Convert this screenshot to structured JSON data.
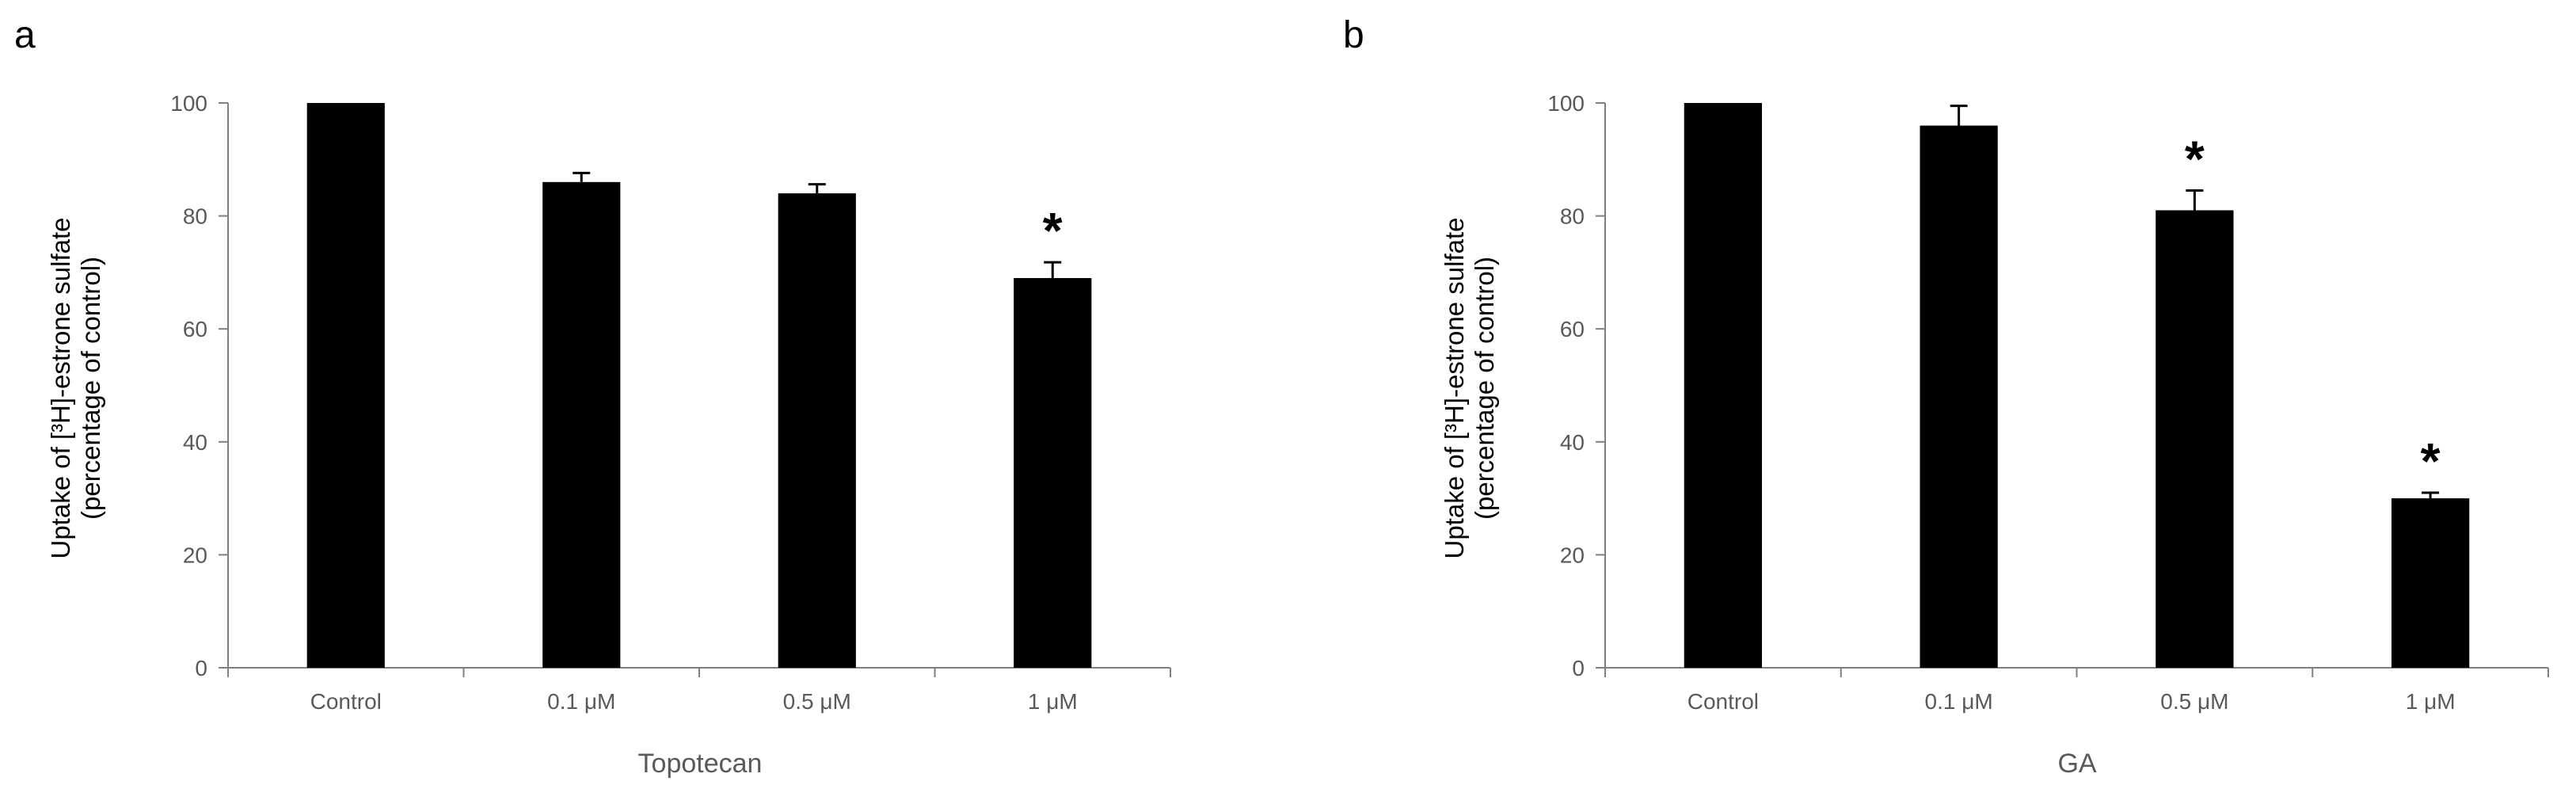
{
  "chart_data": [
    {
      "panel_label": "a",
      "type": "bar",
      "categories": [
        "Control",
        "0.1 μM",
        "0.5 μM",
        "1 μM"
      ],
      "values": [
        100,
        86,
        84,
        69
      ],
      "error": [
        0,
        1.6,
        1.6,
        2.8
      ],
      "significant": [
        "",
        "",
        "",
        "*"
      ],
      "xlabel": "Topotecan",
      "ylabel_line1": "Uptake of [³H]-estrone sulfate",
      "ylabel_line2": "(percentage of control)",
      "ylim": [
        0,
        100
      ],
      "yticks": [
        "0",
        "20",
        "40",
        "60",
        "80",
        "100"
      ],
      "grid": false,
      "bar_color": "#000000"
    },
    {
      "panel_label": "b",
      "type": "bar",
      "categories": [
        "Control",
        "0.1 μM",
        "0.5 μM",
        "1 μM"
      ],
      "values": [
        100,
        96,
        81,
        30
      ],
      "error": [
        0,
        3.5,
        3.5,
        1.0
      ],
      "significant": [
        "",
        "",
        "*",
        "*"
      ],
      "xlabel": "GA",
      "ylabel_line1": "Uptake of [³H]-estrone sulfate",
      "ylabel_line2": "(percentage of control)",
      "ylim": [
        0,
        100
      ],
      "yticks": [
        "0",
        "20",
        "40",
        "60",
        "80",
        "100"
      ],
      "grid": false,
      "bar_color": "#000000"
    }
  ],
  "colors": {
    "axis": "#7f7f7f",
    "tick_text": "#595959",
    "bars": "#000000"
  }
}
